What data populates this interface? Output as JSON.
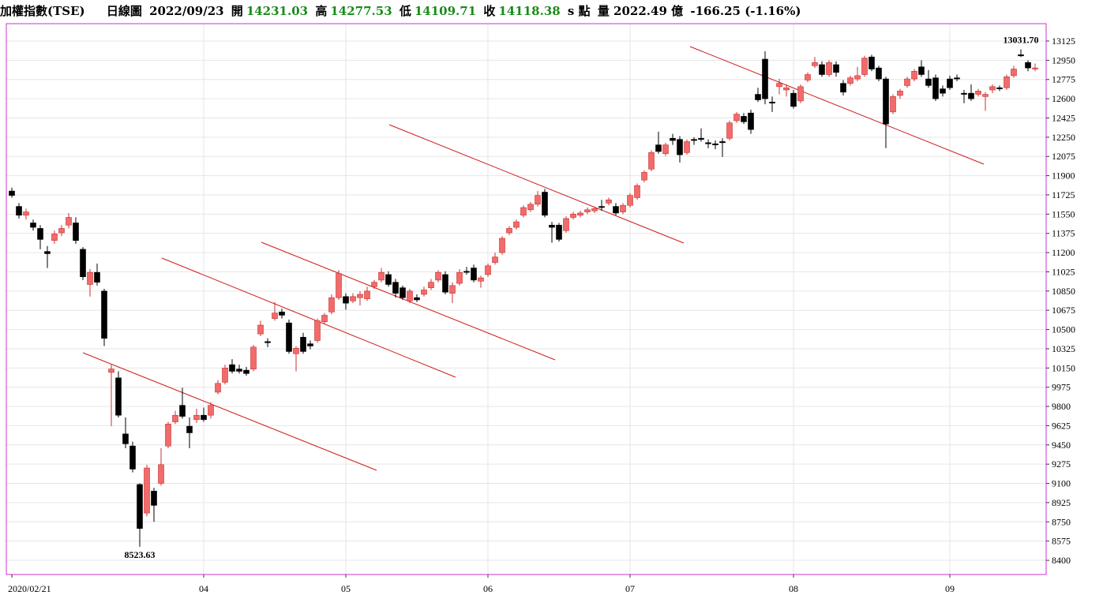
{
  "header": {
    "name": "加權指數(TSE)",
    "period": "日線圖",
    "date": "2022/09/23",
    "open_label": "開",
    "open": "14231.03",
    "high_label": "高",
    "high": "14277.53",
    "low_label": "低",
    "low": "14109.71",
    "close_label": "收",
    "close": "14118.38",
    "unit": "s 點",
    "volume": "量 2022.49 億",
    "change": "-166.25 (-1.16%)"
  },
  "chart_data": {
    "type": "candlestick",
    "up_color": "#f26b6b",
    "down_color": "#000000",
    "grid": true,
    "ylim": [
      8271,
      13283
    ],
    "yticks": [
      13125,
      12950,
      12775,
      12600,
      12425,
      12250,
      12075,
      11900,
      11725,
      11550,
      11375,
      11200,
      11025,
      10850,
      10675,
      10500,
      10325,
      10150,
      9975,
      9800,
      9625,
      9450,
      9275,
      9100,
      8925,
      8750,
      8575,
      8400
    ],
    "categories": [
      "2020/02/21",
      null,
      null,
      null,
      null,
      null,
      null,
      null,
      null,
      null,
      null,
      null,
      null,
      null,
      null,
      null,
      null,
      null,
      null,
      null,
      null,
      null,
      null,
      null,
      null,
      null,
      null,
      "04",
      null,
      null,
      null,
      null,
      null,
      null,
      null,
      null,
      null,
      null,
      null,
      null,
      null,
      null,
      null,
      null,
      null,
      null,
      null,
      "05",
      null,
      null,
      null,
      null,
      null,
      null,
      null,
      null,
      null,
      null,
      null,
      null,
      null,
      null,
      null,
      null,
      null,
      null,
      null,
      "06",
      null,
      null,
      null,
      null,
      null,
      null,
      null,
      null,
      null,
      null,
      null,
      null,
      null,
      null,
      null,
      null,
      null,
      null,
      null,
      "07",
      null,
      null,
      null,
      null,
      null,
      null,
      null,
      null,
      null,
      null,
      null,
      null,
      null,
      null,
      null,
      null,
      null,
      null,
      null,
      null,
      null,
      null,
      "08",
      null,
      null,
      null,
      null,
      null,
      null,
      null,
      null,
      null,
      null,
      null,
      null,
      null,
      null,
      null,
      null,
      null,
      null,
      null,
      null,
      null,
      "09",
      null,
      null,
      null,
      null,
      null,
      null,
      null,
      null,
      null,
      null,
      null,
      null
    ],
    "candles": [
      [
        11760,
        11790,
        11700,
        11720
      ],
      [
        11620,
        11650,
        11510,
        11540
      ],
      [
        11540,
        11600,
        11500,
        11570
      ],
      [
        11470,
        11500,
        11400,
        11430
      ],
      [
        11420,
        11450,
        11230,
        11320
      ],
      [
        11210,
        11260,
        11060,
        11190
      ],
      [
        11310,
        11400,
        11280,
        11370
      ],
      [
        11380,
        11450,
        11350,
        11420
      ],
      [
        11450,
        11560,
        11420,
        11520
      ],
      [
        11470,
        11520,
        11280,
        11310
      ],
      [
        11230,
        11250,
        10950,
        10980
      ],
      [
        10910,
        11050,
        10800,
        11020
      ],
      [
        11020,
        11100,
        10900,
        10930
      ],
      [
        10850,
        10870,
        10350,
        10420
      ],
      [
        10110,
        10180,
        9620,
        10140
      ],
      [
        10060,
        10120,
        9700,
        9720
      ],
      [
        9550,
        9700,
        9420,
        9460
      ],
      [
        9440,
        9480,
        9200,
        9230
      ],
      [
        9090,
        9100,
        8523.63,
        8690
      ],
      [
        8830,
        9270,
        8800,
        9240
      ],
      [
        9030,
        9060,
        8750,
        8900
      ],
      [
        9100,
        9420,
        9080,
        9270
      ],
      [
        9440,
        9660,
        9420,
        9640
      ],
      [
        9660,
        9760,
        9640,
        9720
      ],
      [
        9810,
        9970,
        9690,
        9710
      ],
      [
        9620,
        9700,
        9420,
        9560
      ],
      [
        9680,
        9780,
        9650,
        9720
      ],
      [
        9720,
        9790,
        9660,
        9680
      ],
      [
        9720,
        9840,
        9690,
        9810
      ],
      [
        9930,
        10040,
        9910,
        10010
      ],
      [
        10020,
        10180,
        10000,
        10150
      ],
      [
        10180,
        10230,
        10100,
        10120
      ],
      [
        10140,
        10180,
        10100,
        10120
      ],
      [
        10130,
        10160,
        10080,
        10100
      ],
      [
        10140,
        10360,
        10120,
        10340
      ],
      [
        10460,
        10580,
        10440,
        10540
      ],
      [
        10390,
        10420,
        10340,
        10380
      ],
      [
        10600,
        10750,
        10580,
        10650
      ],
      [
        10660,
        10690,
        10600,
        10630
      ],
      [
        10560,
        10590,
        10280,
        10300
      ],
      [
        10280,
        10350,
        10120,
        10330
      ],
      [
        10430,
        10470,
        10280,
        10300
      ],
      [
        10370,
        10400,
        10320,
        10350
      ],
      [
        10400,
        10600,
        10380,
        10580
      ],
      [
        10570,
        10650,
        10550,
        10630
      ],
      [
        10660,
        10820,
        10640,
        10790
      ],
      [
        10790,
        11040,
        10770,
        11010
      ],
      [
        10800,
        10830,
        10680,
        10740
      ],
      [
        10760,
        10830,
        10740,
        10800
      ],
      [
        10790,
        10850,
        10720,
        10820
      ],
      [
        10780,
        10890,
        10760,
        10850
      ],
      [
        10890,
        10950,
        10870,
        10930
      ],
      [
        10950,
        11060,
        10930,
        11020
      ],
      [
        11000,
        11030,
        10890,
        10910
      ],
      [
        10930,
        10960,
        10790,
        10830
      ],
      [
        10880,
        10900,
        10770,
        10790
      ],
      [
        10760,
        10870,
        10740,
        10850
      ],
      [
        10790,
        10820,
        10750,
        10770
      ],
      [
        10820,
        10890,
        10800,
        10860
      ],
      [
        10880,
        10960,
        10860,
        10930
      ],
      [
        10950,
        11040,
        10930,
        11020
      ],
      [
        11000,
        11030,
        10820,
        10840
      ],
      [
        10830,
        10930,
        10740,
        10900
      ],
      [
        10920,
        11050,
        10900,
        11020
      ],
      [
        11030,
        11070,
        11000,
        11020
      ],
      [
        11060,
        11090,
        10930,
        10950
      ],
      [
        10940,
        10990,
        10880,
        10970
      ],
      [
        11000,
        11100,
        10980,
        11080
      ],
      [
        11110,
        11200,
        11090,
        11160
      ],
      [
        11200,
        11350,
        11180,
        11330
      ],
      [
        11380,
        11440,
        11360,
        11420
      ],
      [
        11430,
        11500,
        11410,
        11480
      ],
      [
        11540,
        11630,
        11520,
        11610
      ],
      [
        11590,
        11660,
        11570,
        11640
      ],
      [
        11640,
        11760,
        11620,
        11720
      ],
      [
        11750,
        11780,
        11520,
        11540
      ],
      [
        11450,
        11480,
        11290,
        11430
      ],
      [
        11450,
        11470,
        11300,
        11320
      ],
      [
        11400,
        11530,
        11380,
        11510
      ],
      [
        11520,
        11570,
        11500,
        11550
      ],
      [
        11540,
        11580,
        11520,
        11560
      ],
      [
        11570,
        11610,
        11550,
        11590
      ],
      [
        11580,
        11620,
        11560,
        11600
      ],
      [
        11620,
        11680,
        11580,
        11610
      ],
      [
        11650,
        11700,
        11630,
        11680
      ],
      [
        11620,
        11650,
        11540,
        11560
      ],
      [
        11570,
        11650,
        11550,
        11630
      ],
      [
        11630,
        11740,
        11610,
        11720
      ],
      [
        11700,
        11830,
        11680,
        11810
      ],
      [
        11860,
        11950,
        11840,
        11930
      ],
      [
        11960,
        12130,
        11940,
        12110
      ],
      [
        12180,
        12300,
        12100,
        12120
      ],
      [
        12100,
        12200,
        12080,
        12180
      ],
      [
        12240,
        12280,
        12180,
        12220
      ],
      [
        12230,
        12260,
        12020,
        12090
      ],
      [
        12110,
        12230,
        12090,
        12210
      ],
      [
        12230,
        12250,
        12180,
        12220
      ],
      [
        12240,
        12330,
        12210,
        12230
      ],
      [
        12200,
        12230,
        12150,
        12190
      ],
      [
        12190,
        12220,
        12140,
        12180
      ],
      [
        12210,
        12240,
        12070,
        12200
      ],
      [
        12240,
        12400,
        12220,
        12380
      ],
      [
        12400,
        12480,
        12380,
        12460
      ],
      [
        12440,
        12470,
        12370,
        12390
      ],
      [
        12470,
        12500,
        12280,
        12320
      ],
      [
        12640,
        12700,
        12570,
        12590
      ],
      [
        12960,
        13031.7,
        12550,
        12600
      ],
      [
        12570,
        12620,
        12480,
        12560
      ],
      [
        12710,
        12780,
        12640,
        12740
      ],
      [
        12680,
        12730,
        12620,
        12700
      ],
      [
        12650,
        12680,
        12510,
        12530
      ],
      [
        12580,
        12730,
        12560,
        12710
      ],
      [
        12770,
        12840,
        12750,
        12820
      ],
      [
        12900,
        12980,
        12880,
        12930
      ],
      [
        12910,
        12940,
        12800,
        12820
      ],
      [
        12820,
        12950,
        12800,
        12930
      ],
      [
        12910,
        12940,
        12800,
        12840
      ],
      [
        12740,
        12770,
        12630,
        12660
      ],
      [
        12740,
        12810,
        12720,
        12790
      ],
      [
        12780,
        12890,
        12760,
        12810
      ],
      [
        12820,
        12990,
        12800,
        12970
      ],
      [
        12980,
        13000,
        12850,
        12870
      ],
      [
        12880,
        12900,
        12760,
        12780
      ],
      [
        12780,
        12800,
        12150,
        12370
      ],
      [
        12480,
        12640,
        12460,
        12620
      ],
      [
        12630,
        12690,
        12600,
        12670
      ],
      [
        12720,
        12800,
        12700,
        12780
      ],
      [
        12780,
        12870,
        12760,
        12850
      ],
      [
        12890,
        12950,
        12800,
        12820
      ],
      [
        12780,
        12860,
        12700,
        12720
      ],
      [
        12790,
        12820,
        12580,
        12600
      ],
      [
        12690,
        12720,
        12620,
        12650
      ],
      [
        12780,
        12810,
        12680,
        12700
      ],
      [
        12790,
        12820,
        12760,
        12780
      ],
      [
        12650,
        12680,
        12560,
        12640
      ],
      [
        12650,
        12730,
        12580,
        12600
      ],
      [
        12640,
        12690,
        12620,
        12670
      ],
      [
        12620,
        12660,
        12490,
        12640
      ],
      [
        12680,
        12730,
        12650,
        12710
      ],
      [
        12700,
        12720,
        12670,
        12690
      ],
      [
        12700,
        12820,
        12680,
        12800
      ],
      [
        12810,
        12900,
        12790,
        12870
      ],
      [
        13000,
        13050,
        12980,
        12990
      ],
      [
        12930,
        12950,
        12850,
        12880
      ],
      [
        12870,
        12920,
        12850,
        12880
      ]
    ],
    "annotations": [
      {
        "label": "13031.70"
      },
      {
        "label": "8523.63"
      }
    ]
  }
}
